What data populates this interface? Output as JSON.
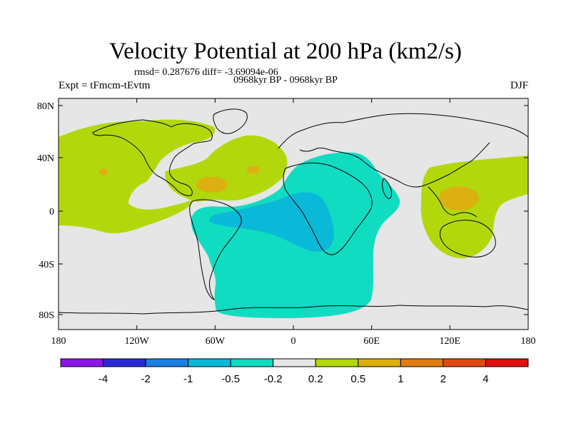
{
  "title": "Velocity Potential at 200 hPa (km2/s)",
  "stats": "rmsd= 0.287676 diff= -3.69094e-06",
  "period": "0968kyr BP - 0968kyr BP",
  "experiment": "Expt = tFmcm-tEvtm",
  "season": "DJF",
  "y_ticks": [
    "80N",
    "40N",
    "0",
    "40S",
    "80S"
  ],
  "x_ticks": [
    "180",
    "120W",
    "60W",
    "0",
    "60E",
    "120E",
    "180"
  ],
  "colorbar": {
    "labels": [
      "-4",
      "-2",
      "-1",
      "-0.5",
      "-0.2",
      "0.2",
      "0.5",
      "1",
      "2",
      "4"
    ],
    "colors": [
      "#8a17e6",
      "#2a2ad6",
      "#1a7fe0",
      "#0ab8d8",
      "#10dcc2",
      "#e6e6e6",
      "#b2d80c",
      "#dcb010",
      "#e07c10",
      "#e04a10",
      "#e01010"
    ]
  },
  "palette": {
    "ocean_land_background": "#e6e6e6",
    "neg_02_05": "#10dcc2",
    "neg_05_1": "#0ab8d8",
    "pos_02_05": "#b2d80c",
    "pos_05_1": "#dcb010",
    "coastline": "#000000"
  }
}
